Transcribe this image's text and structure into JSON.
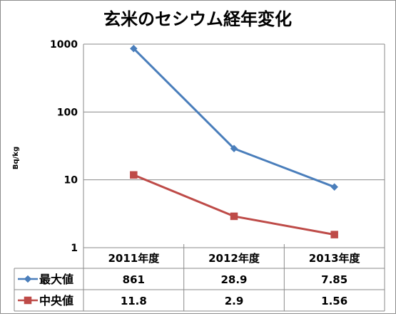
{
  "chart_data": {
    "type": "line",
    "title": "玄米のセシウム経年変化",
    "ylabel": "Bq/kg",
    "yscale": "log",
    "ylim": [
      1,
      1000
    ],
    "yticks": [
      "1",
      "10",
      "100",
      "1000"
    ],
    "grid": true,
    "legend": "left-table",
    "categories": [
      "2011年度",
      "2012年度",
      "2013年度"
    ],
    "series": [
      {
        "name": "最大値",
        "values": [
          861,
          28.9,
          7.85
        ],
        "labels": [
          "861",
          "28.9",
          "7.85"
        ],
        "color": "#4a7ebb",
        "marker": "diamond"
      },
      {
        "name": "中央値",
        "values": [
          11.8,
          2.9,
          1.56
        ],
        "labels": [
          "11.8",
          "2.9",
          "1.56"
        ],
        "color": "#be4b48",
        "marker": "square"
      }
    ]
  }
}
